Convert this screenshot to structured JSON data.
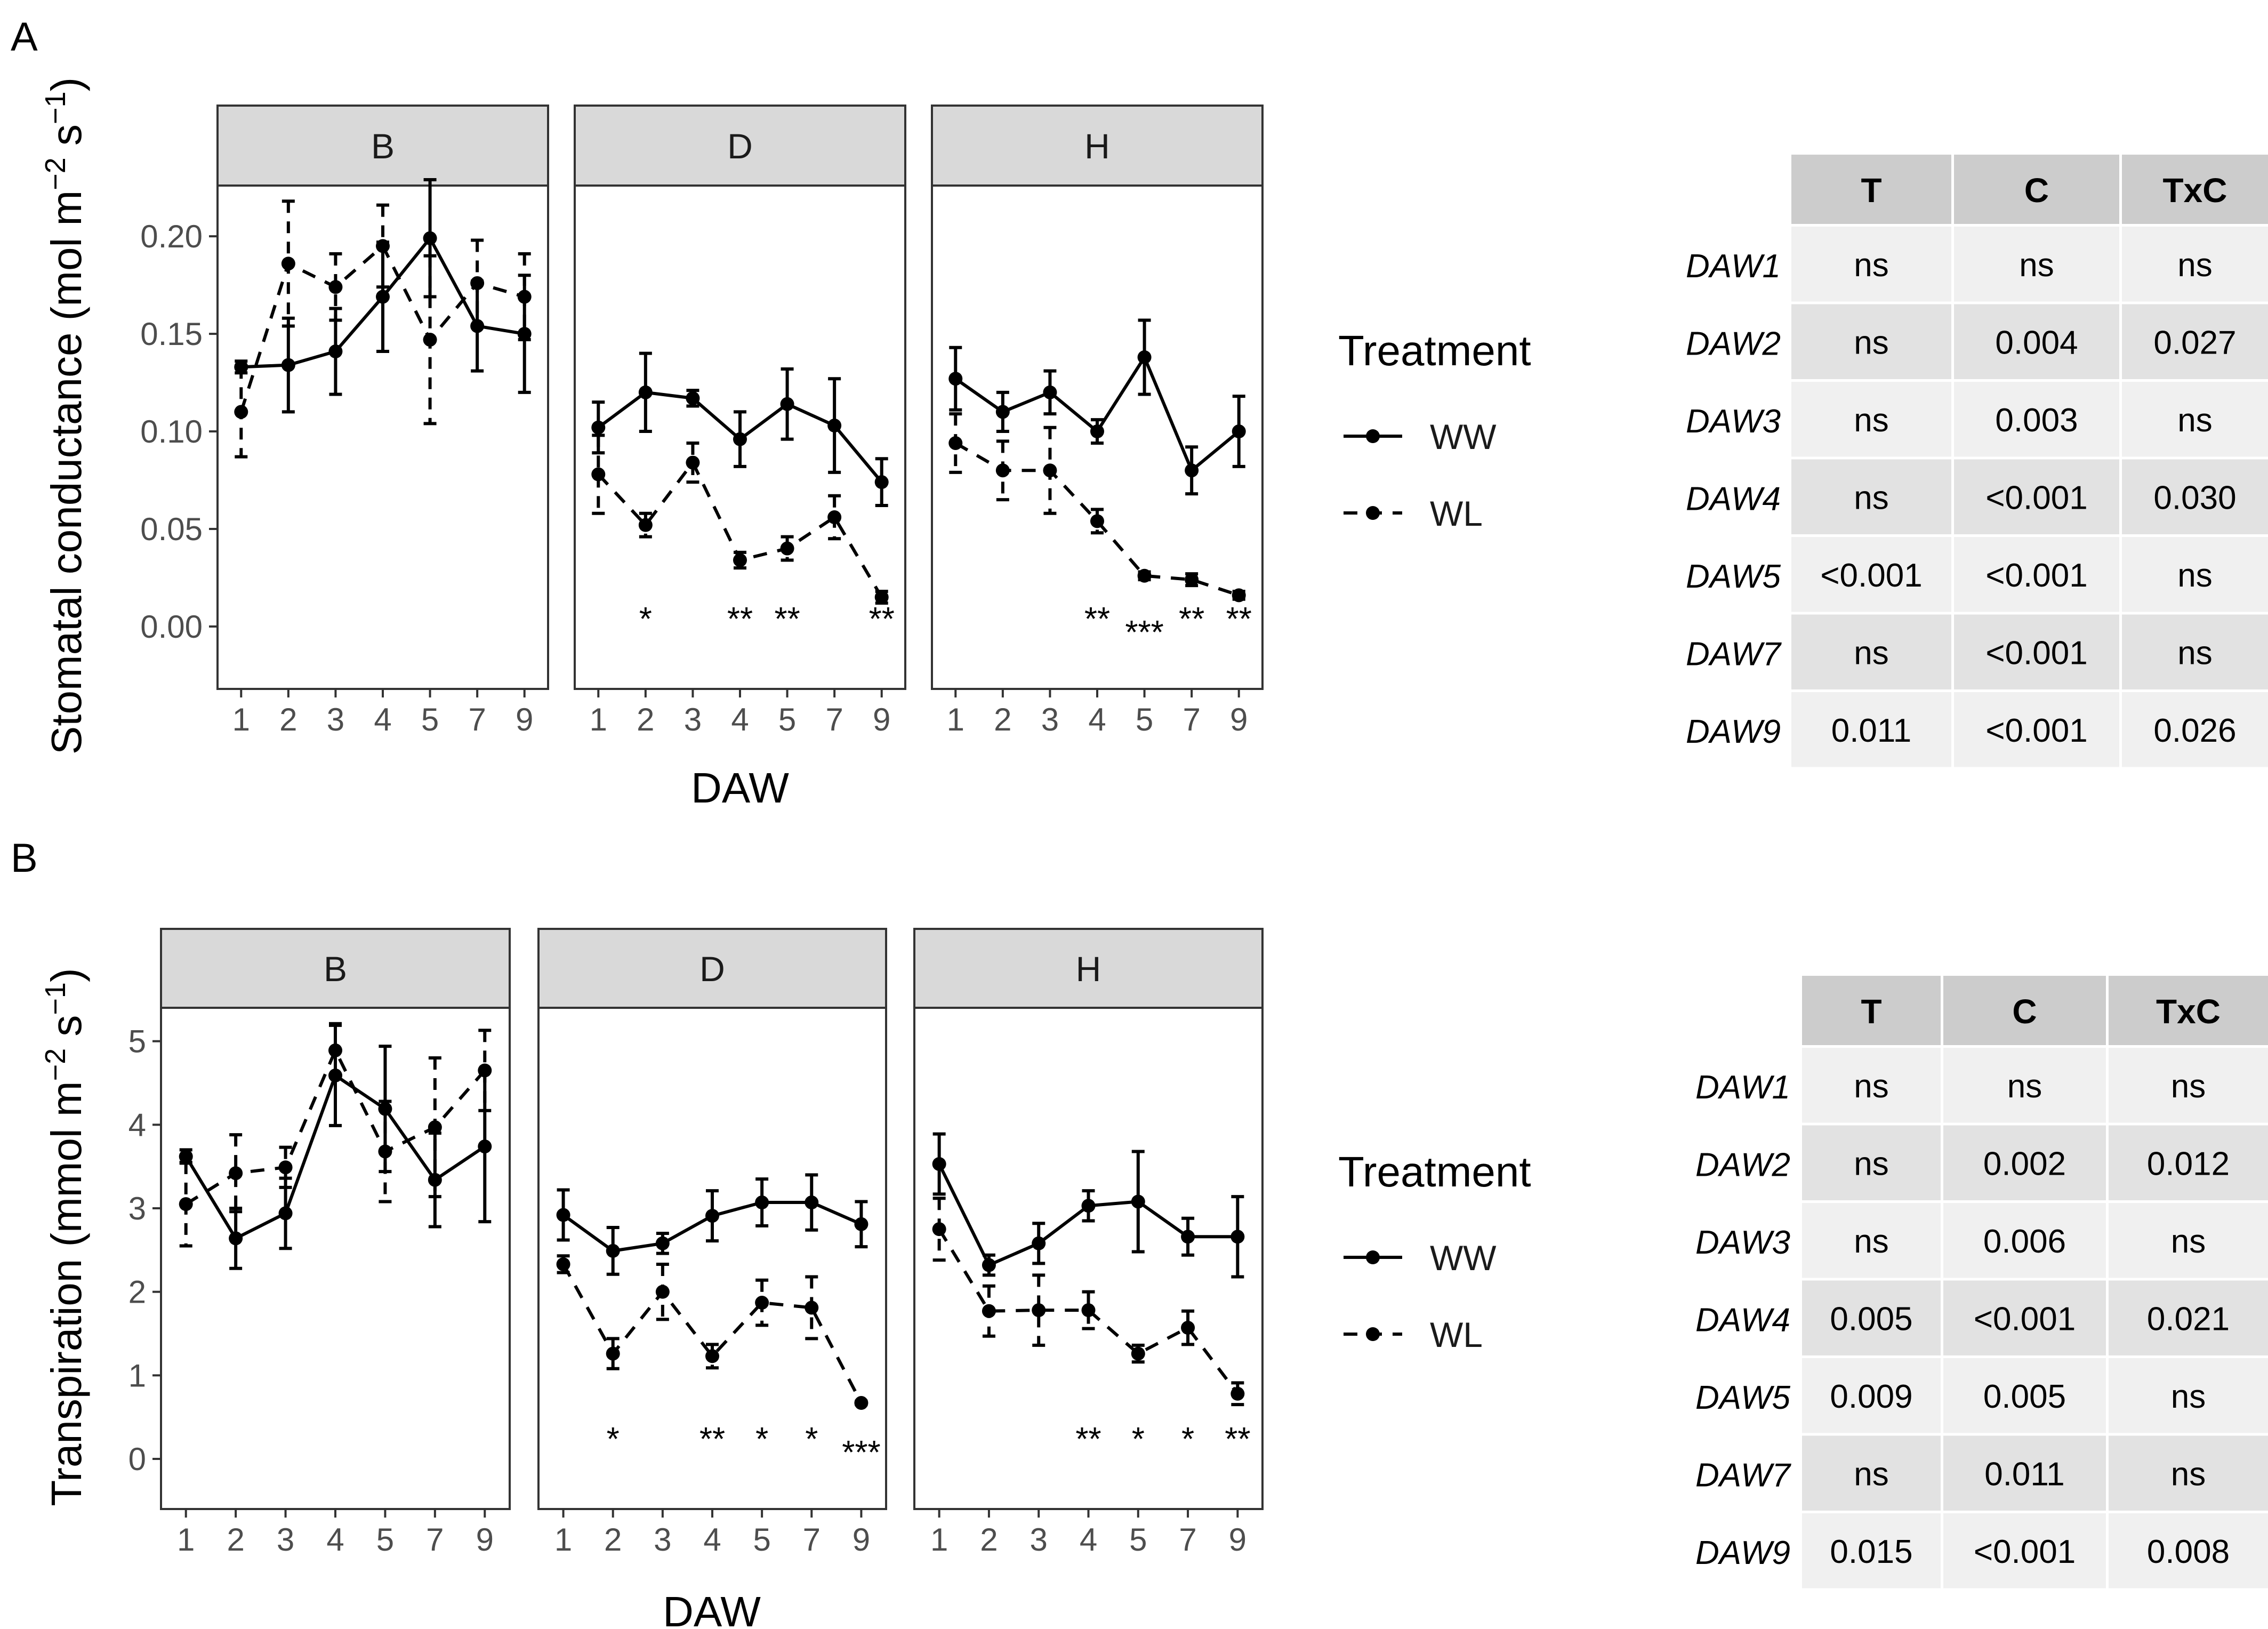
{
  "figure": {
    "xlabel": "DAW",
    "legend": {
      "title": "Treatment",
      "entries": [
        {
          "name": "WW",
          "style": "solid"
        },
        {
          "name": "WL",
          "style": "dashed"
        }
      ]
    },
    "colors": {
      "strip": "#d9d9d9",
      "line": "#000000",
      "grid": "#ffffff",
      "cell_light": "#f0f0f0",
      "cell_dark": "#e2e2e2",
      "header": "#cccccc"
    }
  },
  "chart_data": [
    {
      "type": "line",
      "panel_letter": "A",
      "ylabel": "Stomatal conductance (mol m",
      "ylabel_sup1": "−2",
      "ylabel_mid": " s",
      "ylabel_sup2": "−1",
      "ylabel_end": ")",
      "xlabel": "DAW",
      "x": [
        "1",
        "2",
        "3",
        "4",
        "5",
        "7",
        "9"
      ],
      "ylim": [
        -0.032,
        0.226
      ],
      "yticks": [
        {
          "v": 0.0,
          "label": "0.00"
        },
        {
          "v": 0.05,
          "label": "0.05"
        },
        {
          "v": 0.1,
          "label": "0.10"
        },
        {
          "v": 0.15,
          "label": "0.15"
        },
        {
          "v": 0.2,
          "label": "0.20"
        }
      ],
      "facets": [
        {
          "name": "B",
          "series": [
            {
              "name": "WW",
              "values": [
                0.133,
                0.134,
                0.141,
                0.169,
                0.199,
                0.154,
                0.15
              ],
              "err": [
                0.003,
                0.024,
                0.022,
                0.028,
                0.03,
                0.023,
                0.03
              ]
            },
            {
              "name": "WL",
              "values": [
                0.11,
                0.186,
                0.174,
                0.195,
                0.147,
                0.176,
                0.169
              ],
              "err": [
                0.023,
                0.032,
                0.017,
                0.021,
                0.043,
                0.022,
                0.022
              ]
            }
          ],
          "significance": []
        },
        {
          "name": "D",
          "series": [
            {
              "name": "WW",
              "values": [
                0.102,
                0.12,
                0.117,
                0.096,
                0.114,
                0.103,
                0.074
              ],
              "err": [
                0.013,
                0.02,
                0.004,
                0.014,
                0.018,
                0.024,
                0.012
              ]
            },
            {
              "name": "WL",
              "values": [
                0.078,
                0.052,
                0.084,
                0.034,
                0.04,
                0.056,
                0.015
              ],
              "err": [
                0.02,
                0.006,
                0.01,
                0.004,
                0.006,
                0.011,
                0.003
              ]
            }
          ],
          "significance": [
            {
              "x": "2",
              "label": "*"
            },
            {
              "x": "4",
              "label": "**"
            },
            {
              "x": "5",
              "label": "**"
            },
            {
              "x": "9",
              "label": "**"
            }
          ]
        },
        {
          "name": "H",
          "series": [
            {
              "name": "WW",
              "values": [
                0.127,
                0.11,
                0.12,
                0.1,
                0.138,
                0.08,
                0.1
              ],
              "err": [
                0.016,
                0.01,
                0.011,
                0.006,
                0.019,
                0.012,
                0.018
              ]
            },
            {
              "name": "WL",
              "values": [
                0.094,
                0.08,
                0.08,
                0.054,
                0.026,
                0.024,
                0.016
              ],
              "err": [
                0.015,
                0.015,
                0.022,
                0.006,
                0.002,
                0.003,
                0.002
              ]
            }
          ],
          "significance": [
            {
              "x": "4",
              "label": "**"
            },
            {
              "x": "5",
              "label": "***"
            },
            {
              "x": "7",
              "label": "**"
            },
            {
              "x": "9",
              "label": "**"
            }
          ]
        }
      ],
      "stats_table": {
        "columns": [
          "T",
          "C",
          "TxC"
        ],
        "rows": [
          {
            "label": "DAW1",
            "cells": [
              "ns",
              "ns",
              "ns"
            ]
          },
          {
            "label": "DAW2",
            "cells": [
              "ns",
              "0.004",
              "0.027"
            ]
          },
          {
            "label": "DAW3",
            "cells": [
              "ns",
              "0.003",
              "ns"
            ]
          },
          {
            "label": "DAW4",
            "cells": [
              "ns",
              "<0.001",
              "0.030"
            ]
          },
          {
            "label": "DAW5",
            "cells": [
              "<0.001",
              "<0.001",
              "ns"
            ]
          },
          {
            "label": "DAW7",
            "cells": [
              "ns",
              "<0.001",
              "ns"
            ]
          },
          {
            "label": "DAW9",
            "cells": [
              "0.011",
              "<0.001",
              "0.026"
            ]
          }
        ]
      }
    },
    {
      "type": "line",
      "panel_letter": "B",
      "ylabel": "Transpiration (mmol m",
      "ylabel_sup1": "−2",
      "ylabel_mid": " s",
      "ylabel_sup2": "−1",
      "ylabel_end": ")",
      "xlabel": "DAW",
      "x": [
        "1",
        "2",
        "3",
        "4",
        "5",
        "7",
        "9"
      ],
      "ylim": [
        -0.6,
        5.4
      ],
      "yticks": [
        {
          "v": 0,
          "label": "0"
        },
        {
          "v": 1,
          "label": "1"
        },
        {
          "v": 2,
          "label": "2"
        },
        {
          "v": 3,
          "label": "3"
        },
        {
          "v": 4,
          "label": "4"
        },
        {
          "v": 5,
          "label": "5"
        }
      ],
      "facets": [
        {
          "name": "B",
          "series": [
            {
              "name": "WW",
              "values": [
                3.62,
                2.64,
                2.94,
                4.59,
                4.19,
                3.34,
                3.74
              ],
              "err": [
                0.08,
                0.36,
                0.42,
                0.6,
                0.75,
                0.56,
                0.9
              ]
            },
            {
              "name": "WL",
              "values": [
                3.05,
                3.42,
                3.49,
                4.89,
                3.68,
                3.97,
                4.65
              ],
              "err": [
                0.5,
                0.46,
                0.24,
                0.32,
                0.6,
                0.83,
                0.48
              ]
            }
          ],
          "significance": []
        },
        {
          "name": "D",
          "series": [
            {
              "name": "WW",
              "values": [
                2.92,
                2.49,
                2.58,
                2.91,
                3.07,
                3.07,
                2.81
              ],
              "err": [
                0.3,
                0.28,
                0.12,
                0.3,
                0.28,
                0.33,
                0.27
              ]
            },
            {
              "name": "WL",
              "values": [
                2.33,
                1.26,
                2.0,
                1.23,
                1.87,
                1.81,
                0.67
              ],
              "err": [
                0.1,
                0.18,
                0.33,
                0.14,
                0.27,
                0.37,
                0.02
              ]
            }
          ],
          "significance": [
            {
              "x": "2",
              "label": "*"
            },
            {
              "x": "4",
              "label": "**"
            },
            {
              "x": "5",
              "label": "*"
            },
            {
              "x": "7",
              "label": "*"
            },
            {
              "x": "9",
              "label": "***"
            }
          ]
        },
        {
          "name": "H",
          "series": [
            {
              "name": "WW",
              "values": [
                3.53,
                2.32,
                2.58,
                3.03,
                3.08,
                2.66,
                2.66
              ],
              "err": [
                0.36,
                0.12,
                0.24,
                0.18,
                0.6,
                0.22,
                0.48
              ]
            },
            {
              "name": "WL",
              "values": [
                2.75,
                1.77,
                1.78,
                1.78,
                1.26,
                1.57,
                0.78
              ],
              "err": [
                0.37,
                0.3,
                0.42,
                0.22,
                0.1,
                0.2,
                0.13
              ]
            }
          ],
          "significance": [
            {
              "x": "4",
              "label": "**"
            },
            {
              "x": "5",
              "label": "*"
            },
            {
              "x": "7",
              "label": "*"
            },
            {
              "x": "9",
              "label": "**"
            }
          ]
        }
      ],
      "stats_table": {
        "columns": [
          "T",
          "C",
          "TxC"
        ],
        "rows": [
          {
            "label": "DAW1",
            "cells": [
              "ns",
              "ns",
              "ns"
            ]
          },
          {
            "label": "DAW2",
            "cells": [
              "ns",
              "0.002",
              "0.012"
            ]
          },
          {
            "label": "DAW3",
            "cells": [
              "ns",
              "0.006",
              "ns"
            ]
          },
          {
            "label": "DAW4",
            "cells": [
              "0.005",
              "<0.001",
              "0.021"
            ]
          },
          {
            "label": "DAW5",
            "cells": [
              "0.009",
              "0.005",
              "ns"
            ]
          },
          {
            "label": "DAW7",
            "cells": [
              "ns",
              "0.011",
              "ns"
            ]
          },
          {
            "label": "DAW9",
            "cells": [
              "0.015",
              "<0.001",
              "0.008"
            ]
          }
        ]
      }
    }
  ]
}
